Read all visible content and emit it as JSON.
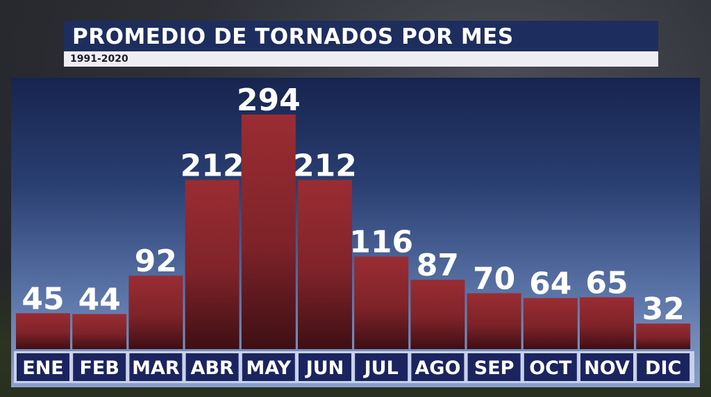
{
  "title": "PROMEDIO DE TORNADOS POR MES",
  "subtitle": "1991-2020",
  "chart_data": {
    "type": "bar",
    "title": "PROMEDIO DE TORNADOS POR MES",
    "subtitle": "1991-2020",
    "categories": [
      "ENE",
      "FEB",
      "MAR",
      "ABR",
      "MAY",
      "JUN",
      "JUL",
      "AGO",
      "SEP",
      "OCT",
      "NOV",
      "DIC"
    ],
    "values": [
      45,
      44,
      92,
      212,
      294,
      212,
      116,
      87,
      70,
      64,
      65,
      32
    ],
    "ylim": [
      0,
      294
    ],
    "grid": false,
    "legend": "none",
    "bar_color": "#8e2a2f",
    "axis_band_color": "#1c2460"
  }
}
